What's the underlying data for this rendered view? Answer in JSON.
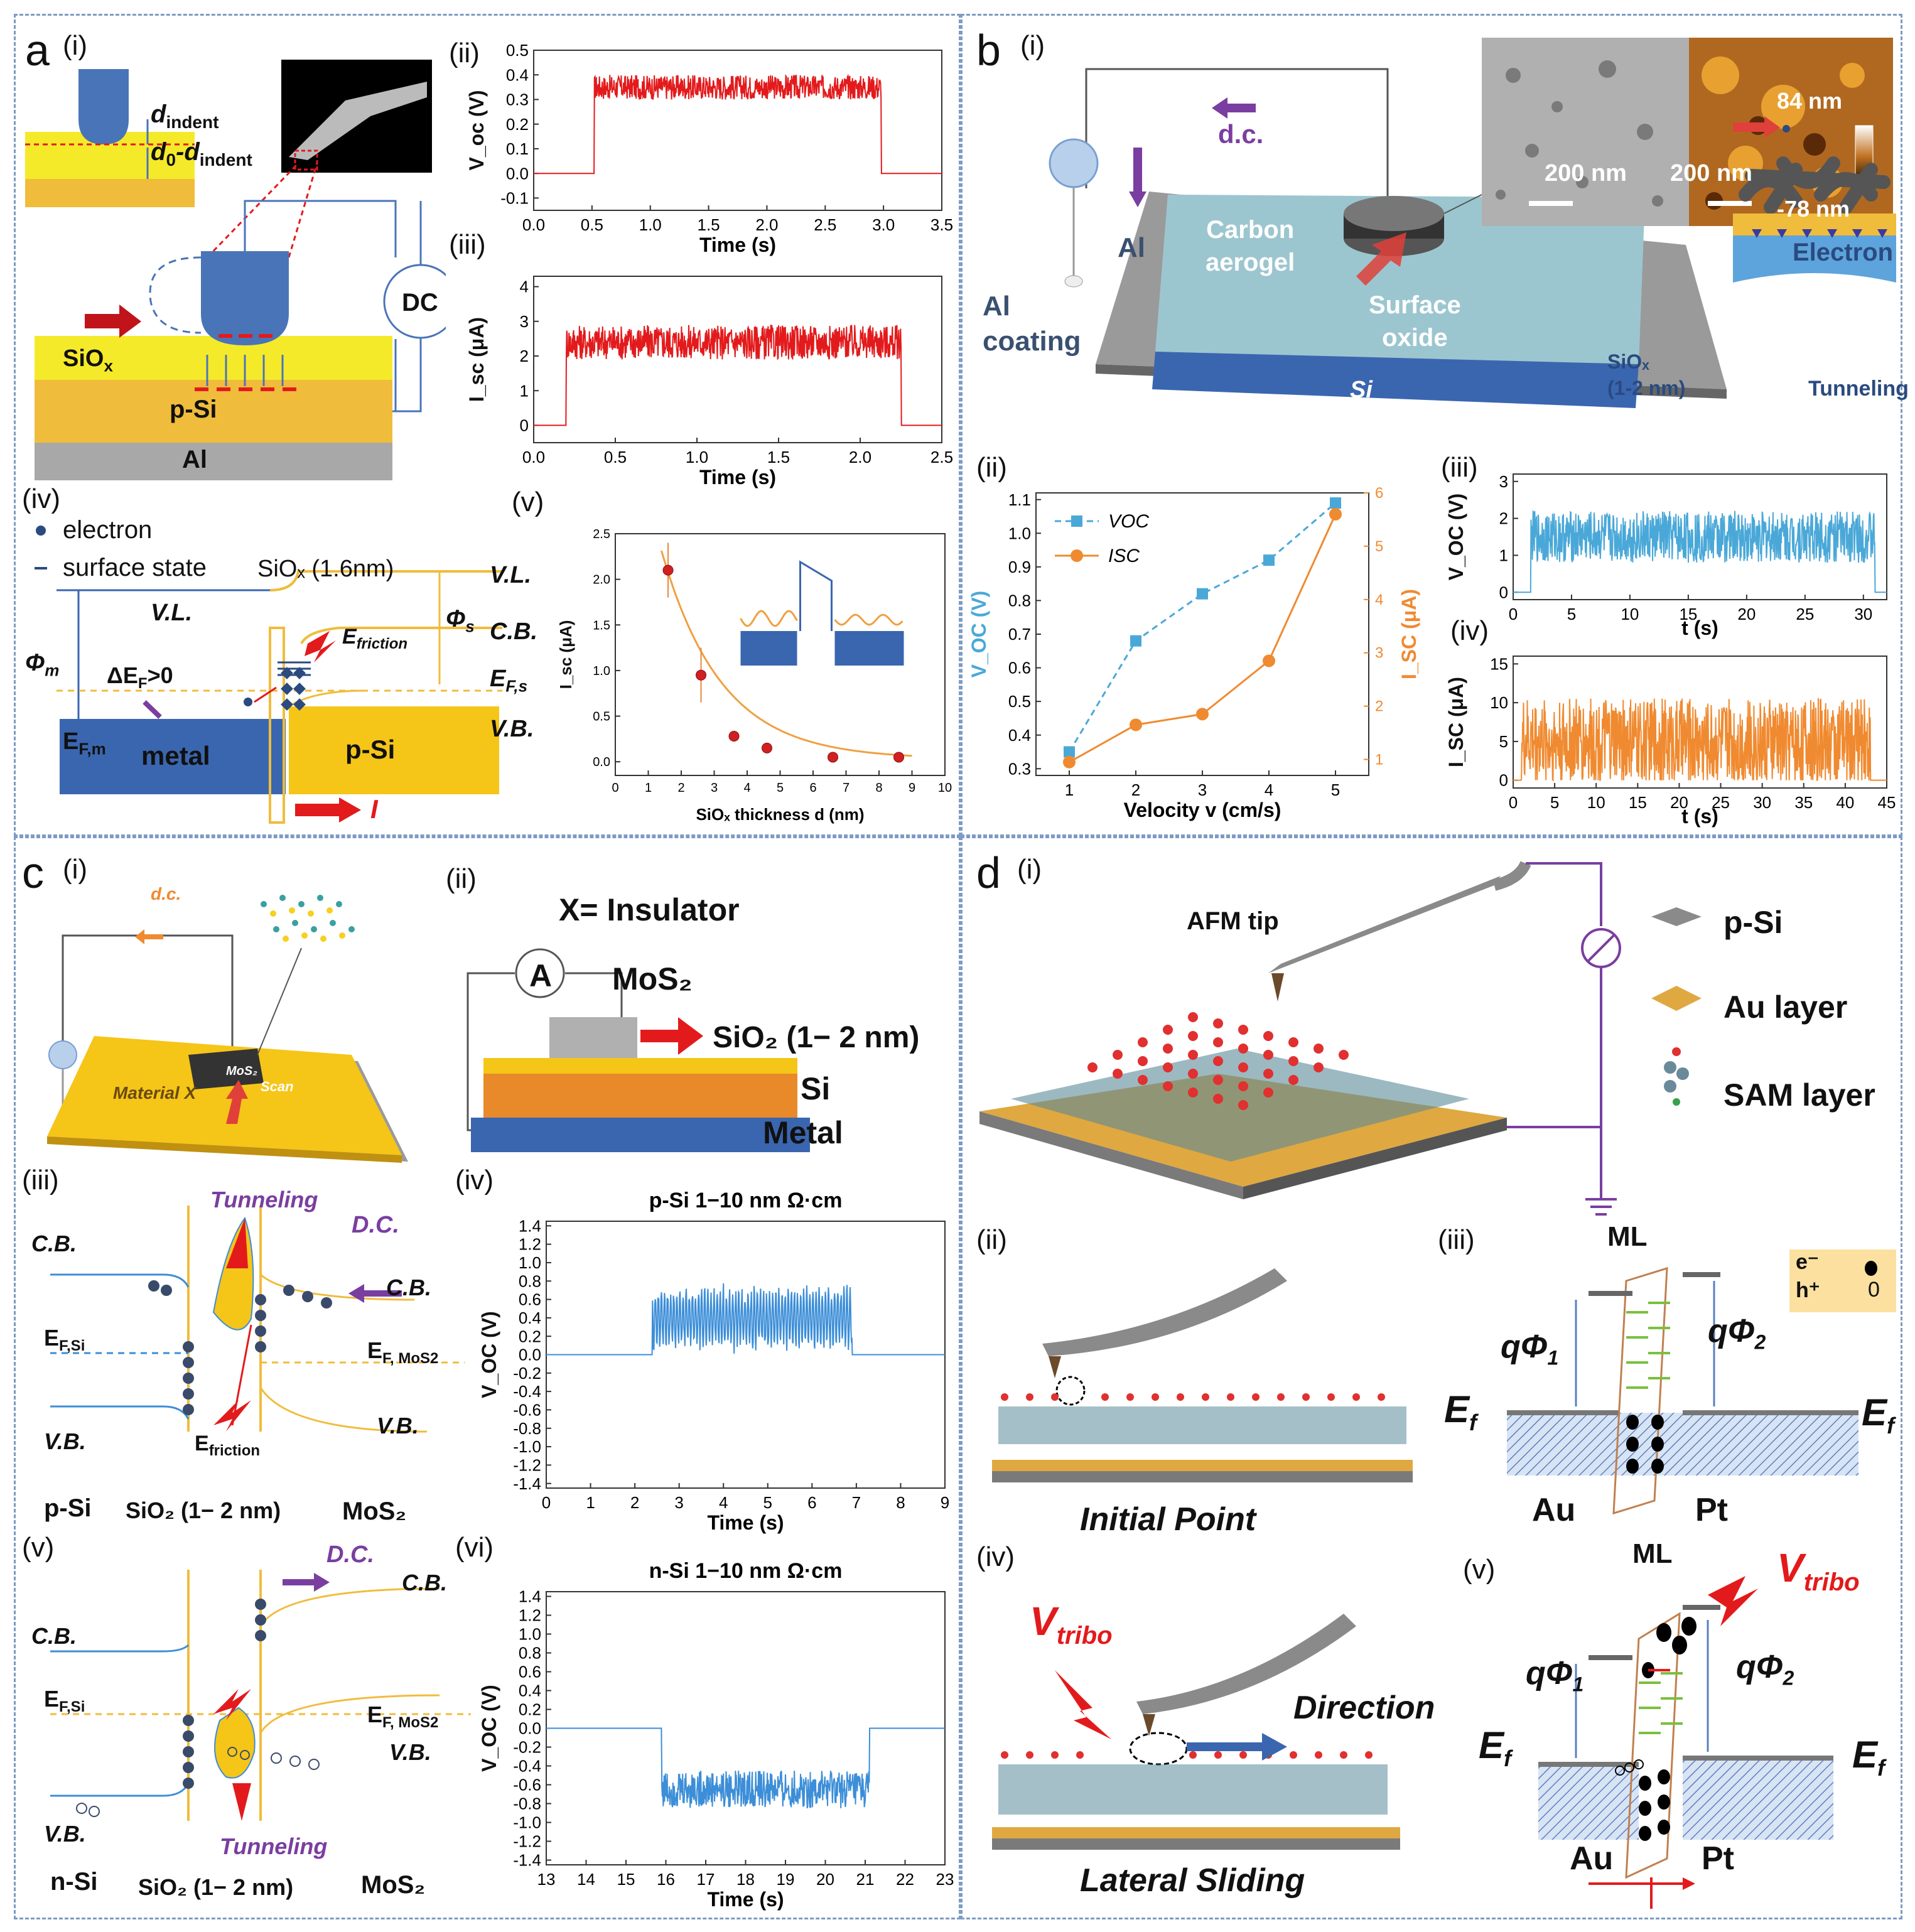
{
  "colors": {
    "yellow": "#f5ea2a",
    "orange": "#f0bc3b",
    "blue": "#3a66b0",
    "red": "#e31a1c",
    "gray": "#a0a0a0",
    "purple": "#7a3ea0",
    "cyan": "#3c8ed8",
    "dash": "#7d9bc4"
  },
  "panel_a": {
    "label": "a",
    "i": "(i)",
    "ii": "(ii)",
    "iii": "(iii)",
    "iv": "(iv)",
    "v": "(v)",
    "d_indent": "d",
    "d_indent_sub": "indent",
    "d0": "d",
    "d0_sub": "0",
    "d0_rest": "-d",
    "d0_rest_sub": "indent",
    "siox": "SiO",
    "siox_sub": "x",
    "psi": "p-Si",
    "al": "Al",
    "dc": "DC",
    "electron": "electron",
    "surface_state": "surface state",
    "siox_thick": "SiOₓ (1.6nm)",
    "vl": "V.L.",
    "vl2": "V.L.",
    "cb": "C.B.",
    "vb": "V.B.",
    "phim": "Φ",
    "phim_sub": "m",
    "phis": "Φ",
    "phis_sub": "s",
    "efs": "E",
    "efs_sub": "F,s",
    "efm": "E",
    "efm_sub": "F,m",
    "metal": "metal",
    "psi2": "p-Si",
    "dEF": "ΔE",
    "dEF_sub": "F",
    "dEF_rest": ">0",
    "efriction": "E",
    "efriction_sub": "friction",
    "current": "I"
  },
  "panel_b": {
    "label": "b",
    "i": "(i)",
    "ii": "(ii)",
    "iii": "(iii)",
    "iv": "(iv)",
    "dc": "d.c.",
    "al": "Al",
    "al_coating_1": "Al",
    "al_coating_2": "coating",
    "carbon1": "Carbon",
    "carbon2": "aerogel",
    "surface1": "Surface",
    "surface2": "oxide",
    "si": "Si",
    "scale1": "200 nm",
    "scale2": "200 nm",
    "h_top": "84 nm",
    "h_bot": "-78 nm",
    "electron": "Electron",
    "siox": "SiOₓ",
    "siox_thick": "(1-2 nm)",
    "tunneling": "Tunneling",
    "si2": "Si"
  },
  "panel_c": {
    "label": "c",
    "i": "(i)",
    "ii": "(ii)",
    "iii": "(iii)",
    "iv": "(iv)",
    "v": "(v)",
    "vi": "(vi)",
    "dc": "d.c.",
    "mos2_chip": "MoS₂",
    "scan": "Scan",
    "material": "Material X",
    "x_ins": "X= Insulator",
    "mos2": "MoS₂",
    "sio2": "SiO₂ (1− 2 nm)",
    "si": "Si",
    "metal": "Metal",
    "tunneling": "Tunneling",
    "DC": "D.C.",
    "cb": "C.B.",
    "vb": "V.B.",
    "efsi": "E",
    "efsi_sub": "F,Si",
    "efmos": "E",
    "efmos_sub": "F, MoS2",
    "efriction": "E",
    "efriction_sub": "friction",
    "psi": "p-Si",
    "nsi": "n-Si",
    "sio2b": "SiO₂ (1− 2 nm)",
    "mos2b": "MoS₂",
    "iv_title": "p-Si 1−10 nm Ω·cm",
    "vi_title": "n-Si 1−10 nm Ω·cm"
  },
  "panel_d": {
    "label": "d",
    "i": "(i)",
    "ii": "(ii)",
    "iii": "(iii)",
    "iv": "(iv)",
    "v": "(v)",
    "afm": "AFM tip",
    "psi": "p-Si",
    "au": "Au layer",
    "sam": "SAM layer",
    "initial": "Initial Point",
    "lateral": "Lateral Sliding",
    "direction": "Direction",
    "vtribo": "V",
    "vtribo_sub": "tribo",
    "ml": "ML",
    "qphi1": "qΦ",
    "qphi1_sub": "1",
    "qphi2": "qΦ",
    "qphi2_sub": "2",
    "ef": "E",
    "ef_sub": "f",
    "au_s": "Au",
    "pt": "Pt",
    "e_leg": "e⁻",
    "h_leg": "h⁺",
    "h_sym": "0"
  },
  "chart_data": [
    {
      "id": "a-ii",
      "type": "line",
      "xlabel": "Time (s)",
      "ylabel": "V_oc (V)",
      "xlim": [
        0,
        3.5
      ],
      "ylim": [
        -0.15,
        0.5
      ],
      "xticks": [
        "0.0",
        "0.5",
        "1.0",
        "1.5",
        "2.0",
        "2.5",
        "3.0",
        "3.5"
      ],
      "yticks": [
        "-0.1",
        "0.0",
        "0.1",
        "0.2",
        "0.3",
        "0.4",
        "0.5"
      ],
      "description_values": {
        "baseline": 0.0,
        "on_start": 0.52,
        "on_end": 2.98,
        "plateau_mean": 0.35,
        "noise": 0.05
      }
    },
    {
      "id": "a-iii",
      "type": "line",
      "xlabel": "Time (s)",
      "ylabel": "I_sc (μA)",
      "xlim": [
        0,
        2.5
      ],
      "ylim": [
        -0.5,
        4.3
      ],
      "xticks": [
        "0.0",
        "0.5",
        "1.0",
        "1.5",
        "2.0",
        "2.5"
      ],
      "yticks": [
        "0",
        "1",
        "2",
        "3",
        "4"
      ],
      "description_values": {
        "baseline": 0.0,
        "on_start": 0.2,
        "on_end": 2.25,
        "plateau_mean": 2.4,
        "noise": 0.5
      }
    },
    {
      "id": "a-v",
      "type": "scatter",
      "xlabel": "SiOₓ thickness d (nm)",
      "ylabel": "I_sc (μA)",
      "xlim": [
        0,
        10
      ],
      "ylim": [
        -0.15,
        2.5
      ],
      "xticks": [
        "0",
        "1",
        "2",
        "3",
        "4",
        "5",
        "6",
        "7",
        "8",
        "9",
        "10"
      ],
      "yticks": [
        "0.0",
        "0.5",
        "1.0",
        "1.5",
        "2.0",
        "2.5"
      ],
      "x": [
        1.6,
        2.6,
        3.6,
        4.6,
        6.6,
        8.6
      ],
      "y": [
        2.1,
        0.95,
        0.28,
        0.15,
        0.05,
        0.05
      ]
    },
    {
      "id": "b-ii",
      "type": "line",
      "xlabel": "Velocity v (cm/s)",
      "ylabel": "V_OC (V)",
      "ylabel2": "I_SC (μA)",
      "xlim": [
        0.5,
        5.5
      ],
      "ylim": [
        0.28,
        1.12
      ],
      "y2lim": [
        0.7,
        6
      ],
      "xticks": [
        "1",
        "2",
        "3",
        "4",
        "5"
      ],
      "yticks": [
        "0.3",
        "0.4",
        "0.5",
        "0.6",
        "0.7",
        "0.8",
        "0.9",
        "1.0",
        "1.1"
      ],
      "y2ticks": [
        "1",
        "2",
        "3",
        "4",
        "5",
        "6"
      ],
      "series": [
        {
          "name": "V_OC",
          "values": [
            0.35,
            0.68,
            0.82,
            0.92,
            1.09
          ],
          "x": [
            1,
            2,
            3,
            4,
            5
          ]
        },
        {
          "name": "I_SC",
          "values": [
            0.95,
            1.65,
            1.85,
            2.85,
            5.6
          ],
          "x": [
            1,
            2,
            3,
            4,
            5
          ]
        }
      ]
    },
    {
      "id": "b-iii",
      "type": "line",
      "xlabel": "t (s)",
      "ylabel": "V_OC (V)",
      "xlim": [
        0,
        32
      ],
      "ylim": [
        -0.2,
        3.2
      ],
      "xticks": [
        "0",
        "5",
        "10",
        "15",
        "20",
        "25",
        "30"
      ],
      "yticks": [
        "0",
        "1",
        "2",
        "3"
      ],
      "description_values": {
        "on_start": 1.5,
        "on_end": 31,
        "plateau_mean": 1.5,
        "noise": 0.5
      }
    },
    {
      "id": "b-iv",
      "type": "line",
      "xlabel": "t (s)",
      "ylabel": "I_SC (μA)",
      "xlim": [
        0,
        45
      ],
      "ylim": [
        -1,
        16
      ],
      "xticks": [
        "0",
        "5",
        "10",
        "15",
        "20",
        "25",
        "30",
        "35",
        "40",
        "45"
      ],
      "yticks": [
        "0",
        "5",
        "10",
        "15"
      ],
      "description_values": {
        "on_start": 1,
        "on_end": 43,
        "plateau_mean": 5,
        "noise": 4
      }
    },
    {
      "id": "c-iv",
      "type": "line",
      "title": "p-Si 1−10 nm Ω·cm",
      "xlabel": "Time (s)",
      "ylabel": "V_OC (V)",
      "xlim": [
        0,
        9
      ],
      "ylim": [
        -1.45,
        1.45
      ],
      "xticks": [
        "0",
        "1",
        "2",
        "3",
        "4",
        "5",
        "6",
        "7",
        "8",
        "9"
      ],
      "yticks": [
        "1.4",
        "1.2",
        "1.0",
        "0.8",
        "0.6",
        "0.4",
        "0.2",
        "0.0",
        "-0.2",
        "-0.4",
        "-0.6",
        "-0.8",
        "-1.0",
        "-1.2",
        "-1.4"
      ],
      "description_values": {
        "on_start": 2.4,
        "on_end": 6.9,
        "plateau_mean": 0.45,
        "noise": 0.3
      }
    },
    {
      "id": "c-vi",
      "type": "line",
      "title": "n-Si 1−10 nm Ω·cm",
      "xlabel": "Time (s)",
      "ylabel": "V_OC (V)",
      "xlim": [
        13,
        23
      ],
      "ylim": [
        -1.45,
        1.45
      ],
      "xticks": [
        "13",
        "14",
        "15",
        "16",
        "17",
        "18",
        "19",
        "20",
        "21",
        "22",
        "23"
      ],
      "yticks": [
        "1.4",
        "1.2",
        "1.0",
        "0.8",
        "0.6",
        "0.4",
        "0.2",
        "0.0",
        "-0.2",
        "-0.4",
        "-0.6",
        "-0.8",
        "-1.0",
        "-1.2",
        "-1.4"
      ],
      "description_values": {
        "on_start": 15.9,
        "on_end": 21.1,
        "plateau_mean": -0.65,
        "noise": 0.2
      }
    }
  ]
}
